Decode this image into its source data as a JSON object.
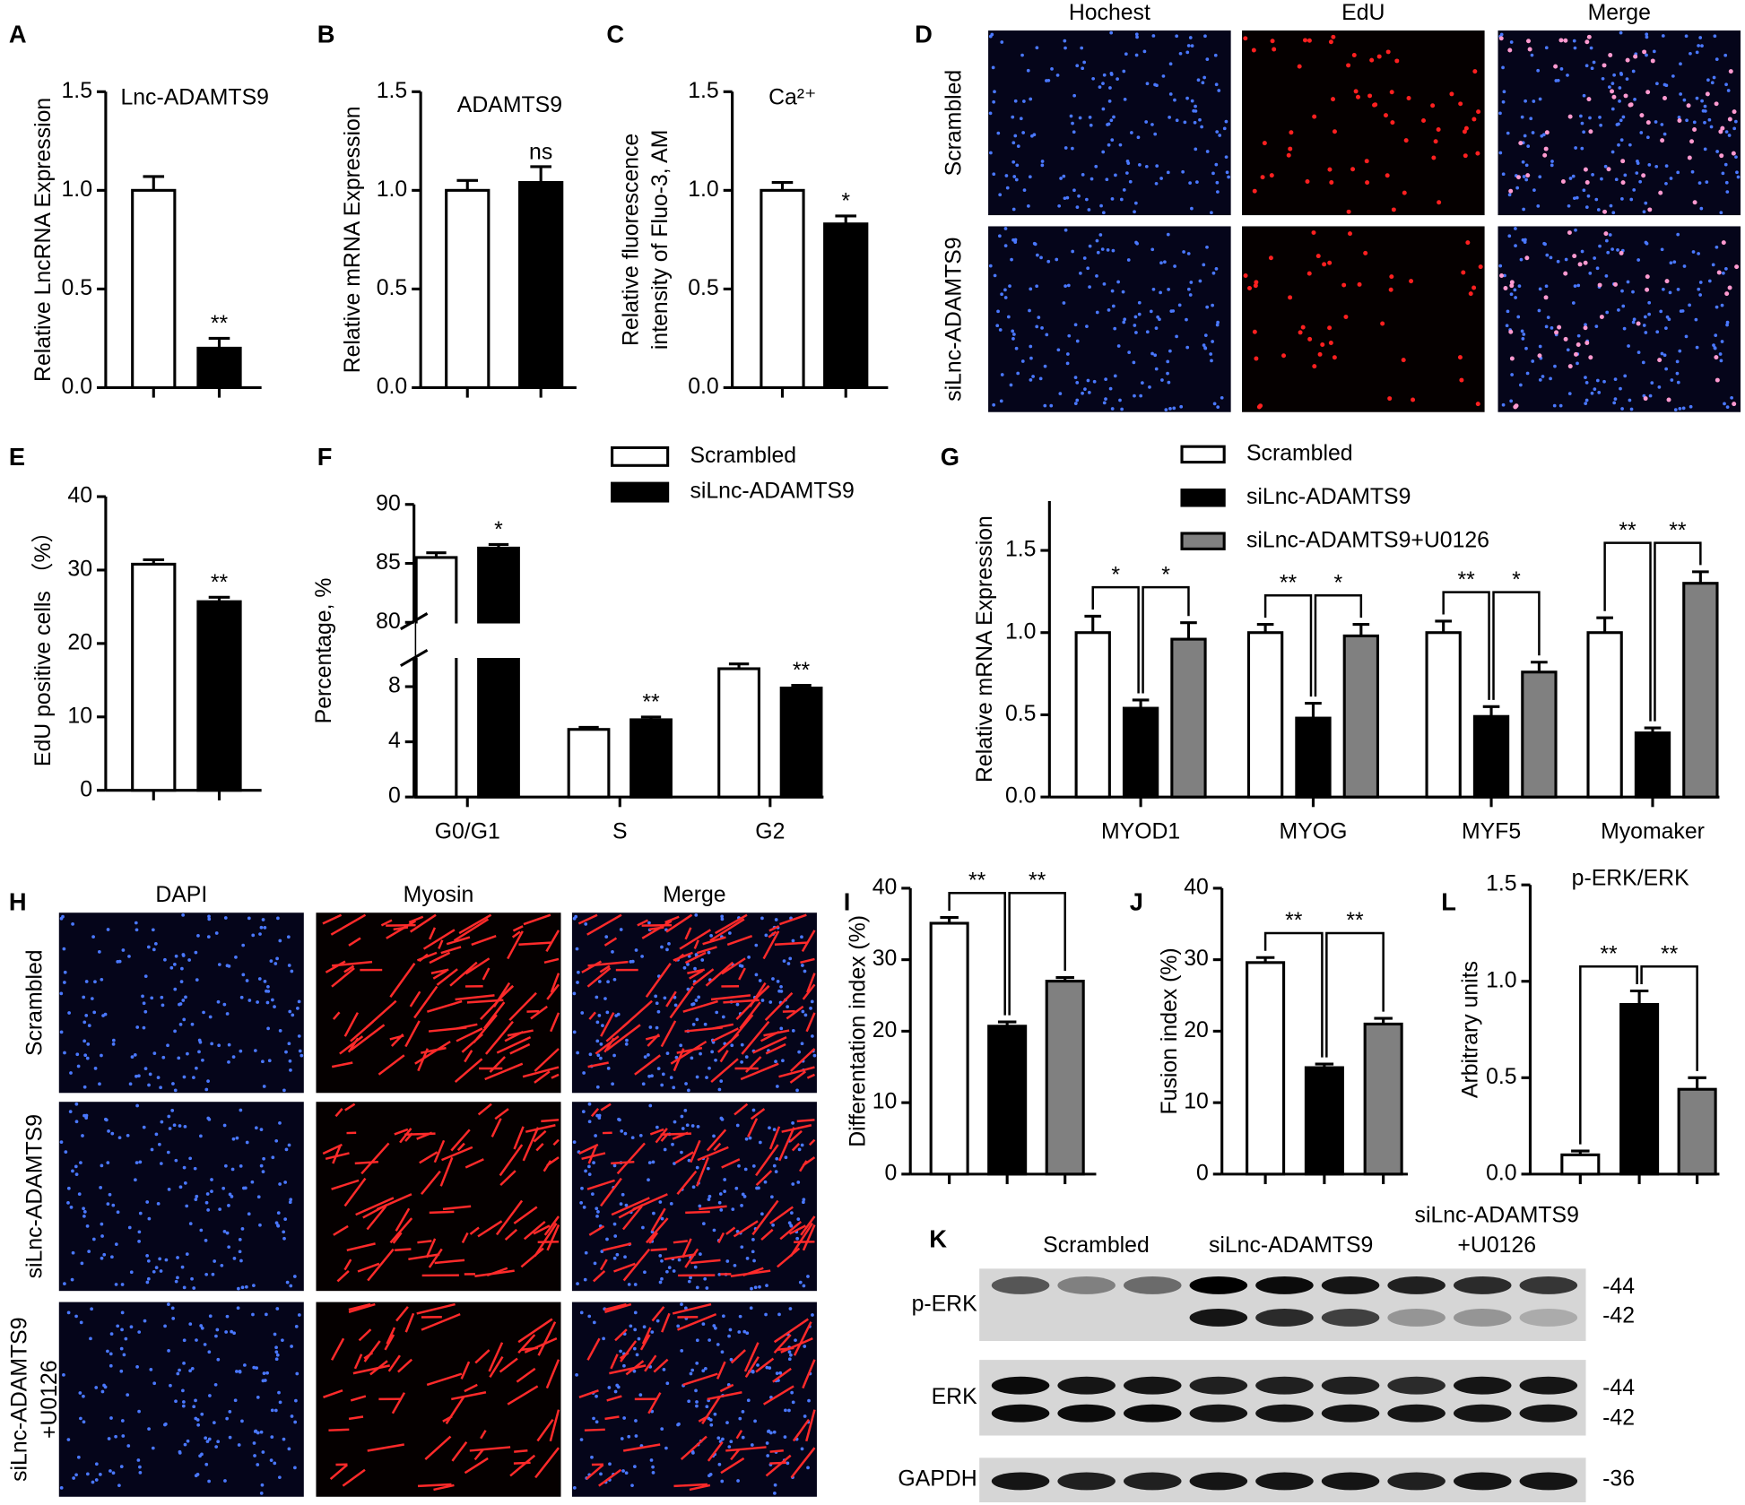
{
  "chart_data": [
    {
      "type": "bar",
      "label": "A",
      "title": "Lnc-ADAMTS9",
      "ylabel": "Relative LncRNA Expression",
      "ylim": [
        0,
        1.5
      ],
      "yticks": [
        {
          "value": 0,
          "label": "0.0"
        },
        {
          "value": 0.5,
          "label": "0.5"
        },
        {
          "value": 1,
          "label": "1.0"
        },
        1.5
      ],
      "values": [
        1.0,
        0.2
      ],
      "errors": [
        0.07,
        0.05
      ],
      "colors": [
        "#ffffff",
        "#000000"
      ],
      "sig": [
        null,
        "**"
      ]
    },
    {
      "type": "bar",
      "label": "B",
      "title": "ADAMTS9",
      "ylabel": "Relative mRNA Expression",
      "ylim": [
        0,
        1.5
      ],
      "yticks": [
        {
          "value": 0,
          "label": "0.0"
        },
        {
          "value": 0.5,
          "label": "0.5"
        },
        {
          "value": 1,
          "label": "1.0"
        },
        1.5
      ],
      "values": [
        1.0,
        1.04
      ],
      "errors": [
        0.05,
        0.08
      ],
      "colors": [
        "#ffffff",
        "#000000"
      ],
      "sig": [
        null,
        "ns"
      ]
    },
    {
      "type": "bar",
      "label": "C",
      "title": "Ca²⁺",
      "ylabel": [
        "Relative fluorescence",
        "intensity of Fluo-3, AM"
      ],
      "ylim": [
        0,
        1.5
      ],
      "yticks": [
        {
          "value": 0,
          "label": "0.0"
        },
        {
          "value": 0.5,
          "label": "0.5"
        },
        {
          "value": 1,
          "label": "1.0"
        },
        1.5
      ],
      "values": [
        1.0,
        0.83
      ],
      "errors": [
        0.04,
        0.04
      ],
      "colors": [
        "#ffffff",
        "#000000"
      ],
      "sig": [
        null,
        "*"
      ]
    },
    {
      "type": "bar",
      "label": "E",
      "ylabel": "EdU positive cells （%）",
      "ylim": [
        0,
        40
      ],
      "yticks": [
        0,
        10,
        20,
        30,
        40
      ],
      "values": [
        30.8,
        25.7
      ],
      "errors": [
        0.6,
        0.6
      ],
      "colors": [
        "#ffffff",
        "#000000"
      ],
      "sig": [
        null,
        "**"
      ]
    },
    {
      "type": "bar",
      "label": "F",
      "ylabel": "Percentage, %",
      "ylim": [
        0,
        90
      ],
      "ybreak": [
        10,
        80
      ],
      "yticks": [
        0,
        4,
        8,
        80,
        85,
        90
      ],
      "categories": [
        "G0/G1",
        "S",
        "G2"
      ],
      "series": [
        {
          "name": "Scrambled",
          "color": "#ffffff",
          "values": [
            85.5,
            4.9,
            9.3
          ],
          "errors": [
            0.4,
            0.15,
            0.35
          ],
          "sig": [
            null,
            null,
            null
          ]
        },
        {
          "name": "siLnc-ADAMTS9",
          "color": "#000000",
          "values": [
            86.3,
            5.6,
            7.9
          ],
          "errors": [
            0.3,
            0.2,
            0.2
          ],
          "sig": [
            "*",
            "**",
            "**"
          ]
        }
      ]
    },
    {
      "type": "bar",
      "label": "G",
      "ylabel": "Relative mRNA Expression",
      "ylim": [
        0,
        1.8
      ],
      "yticks": [
        {
          "value": 0,
          "label": "0.0"
        },
        {
          "value": 0.5,
          "label": "0.5"
        },
        {
          "value": 1,
          "label": "1.0"
        },
        1.5
      ],
      "categories": [
        "MYOD1",
        "MYOG",
        "MYF5",
        "Myomaker"
      ],
      "series": [
        {
          "name": "Scrambled",
          "color": "#ffffff",
          "values": [
            1.0,
            1.0,
            1.0,
            1.0
          ],
          "errors": [
            0.1,
            0.05,
            0.07,
            0.09
          ]
        },
        {
          "name": "siLnc-ADAMTS9",
          "color": "#000000",
          "values": [
            0.54,
            0.48,
            0.49,
            0.39
          ],
          "errors": [
            0.05,
            0.09,
            0.06,
            0.03
          ]
        },
        {
          "name": "siLnc-ADAMTS9+U0126",
          "color": "#808080",
          "values": [
            0.96,
            0.98,
            0.76,
            1.3
          ],
          "errors": [
            0.1,
            0.07,
            0.06,
            0.07
          ]
        }
      ],
      "brackets": [
        [
          "*",
          "*"
        ],
        [
          "**",
          "*"
        ],
        [
          "**",
          "*"
        ],
        [
          "**",
          "**"
        ]
      ]
    },
    {
      "type": "bar",
      "label": "I",
      "ylabel": "Differentation index (%)",
      "ylim": [
        0,
        40
      ],
      "yticks": [
        0,
        10,
        20,
        30,
        40
      ],
      "values": [
        35.1,
        20.7,
        27.0
      ],
      "errors": [
        0.8,
        0.6,
        0.5
      ],
      "colors": [
        "#ffffff",
        "#000000",
        "#808080"
      ],
      "brackets": [
        "**",
        "**"
      ]
    },
    {
      "type": "bar",
      "label": "J",
      "ylabel": "Fusion index (%)",
      "ylim": [
        0,
        40
      ],
      "yticks": [
        0,
        10,
        20,
        30,
        40
      ],
      "values": [
        29.6,
        14.9,
        21.0
      ],
      "errors": [
        0.7,
        0.5,
        0.8
      ],
      "colors": [
        "#ffffff",
        "#000000",
        "#808080"
      ],
      "brackets": [
        "**",
        "**"
      ]
    },
    {
      "type": "bar",
      "label": "L",
      "title": "p-ERK/ERK",
      "ylabel": "Arbitrary units",
      "ylim": [
        0,
        1.5
      ],
      "yticks": [
        {
          "value": 0,
          "label": "0.0"
        },
        {
          "value": 0.5,
          "label": "0.5"
        },
        {
          "value": 1,
          "label": "1.0"
        },
        1.5
      ],
      "values": [
        0.1,
        0.88,
        0.44
      ],
      "errors": [
        0.02,
        0.07,
        0.06
      ],
      "colors": [
        "#ffffff",
        "#000000",
        "#808080"
      ],
      "brackets": [
        "**",
        "**"
      ]
    }
  ],
  "panels": [
    {
      "label": "D",
      "columns": [
        "Hochest",
        "EdU",
        "Merge"
      ],
      "column_colors": [
        "#1a1aff",
        "#e8141e",
        "#000000"
      ],
      "rows": [
        [
          "Scrambled"
        ],
        [
          "siLnc-ADAMTS9"
        ]
      ]
    },
    {
      "label": "H",
      "columns": [
        "DAPI",
        "Myosin",
        "Merge"
      ],
      "column_colors": [
        "#1a1aff",
        "#e0206a",
        "#000000"
      ],
      "rows": [
        [
          "Scrambled"
        ],
        [
          "siLnc-ADAMTS9"
        ],
        [
          "siLnc-ADAMTS9",
          "+U0126"
        ]
      ]
    }
  ],
  "blot": {
    "label": "K",
    "groups": [
      [
        "Scrambled"
      ],
      [
        "siLnc-ADAMTS9"
      ],
      [
        "siLnc-ADAMTS9",
        "+U0126"
      ]
    ],
    "rows": [
      {
        "name": "p-ERK",
        "markers": [
          "-44",
          "-42"
        ]
      },
      {
        "name": "ERK",
        "markers": [
          "-44",
          "-42"
        ]
      },
      {
        "name": "GAPDH",
        "markers": [
          "-36"
        ]
      }
    ]
  }
}
